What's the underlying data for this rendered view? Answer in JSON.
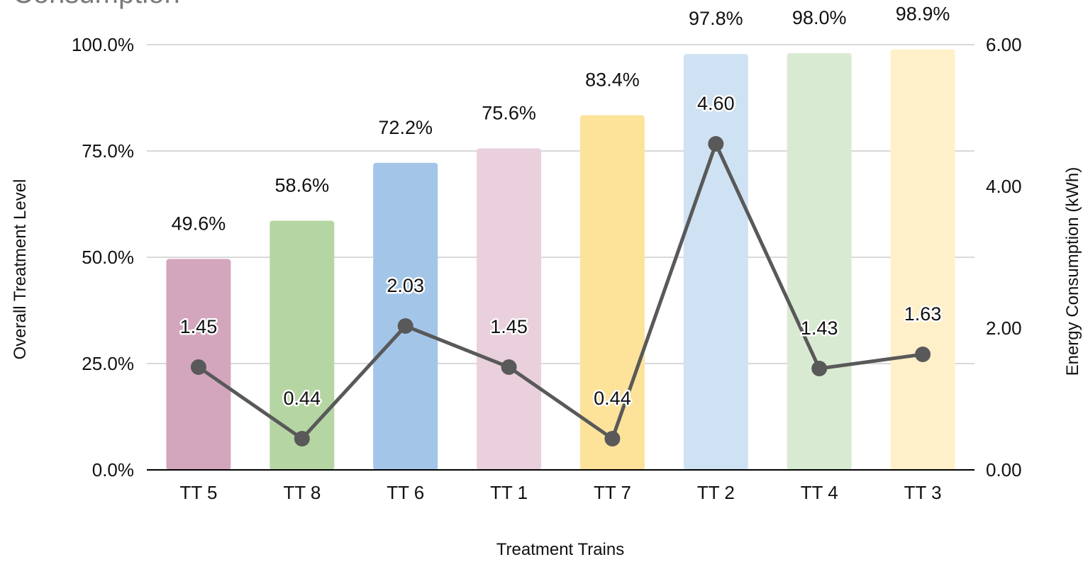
{
  "chart_data": {
    "type": "bar",
    "title": "Consumption",
    "xlabel": "Treatment Trains",
    "ylabel": "Overall Treatment Level",
    "y2label": "Energy Consumption (kWh)",
    "ylim": [
      0,
      100
    ],
    "y2lim": [
      0,
      6
    ],
    "yticks": [
      "0.0%",
      "25.0%",
      "50.0%",
      "75.0%",
      "100.0%"
    ],
    "y2ticks": [
      "0.00",
      "2.00",
      "4.00",
      "6.00"
    ],
    "categories": [
      "TT 5",
      "TT 8",
      "TT 6",
      "TT 1",
      "TT 7",
      "TT 2",
      "TT 4",
      "TT 3"
    ],
    "series": [
      {
        "type": "bar",
        "axis": "left",
        "values": [
          49.6,
          58.6,
          72.2,
          75.6,
          83.4,
          97.8,
          98.0,
          98.9
        ],
        "labels": [
          "49.6%",
          "58.6%",
          "72.2%",
          "75.6%",
          "83.4%",
          "97.8%",
          "98.0%",
          "98.9%"
        ],
        "colors": [
          "#d3a6bd",
          "#b5d6a3",
          "#a3c6e8",
          "#e9d0dc",
          "#fde29a",
          "#cfe2f3",
          "#d9ead3",
          "#fff0c9"
        ]
      },
      {
        "type": "line",
        "axis": "right",
        "values": [
          1.45,
          0.44,
          2.03,
          1.45,
          0.44,
          4.6,
          1.43,
          1.63
        ],
        "labels": [
          "1.45",
          "0.44",
          "2.03",
          "1.45",
          "0.44",
          "4.60",
          "1.43",
          "1.63"
        ],
        "color": "#595959"
      }
    ],
    "grid": true,
    "gridline_color": "#d9d9d9",
    "legend": "none"
  }
}
